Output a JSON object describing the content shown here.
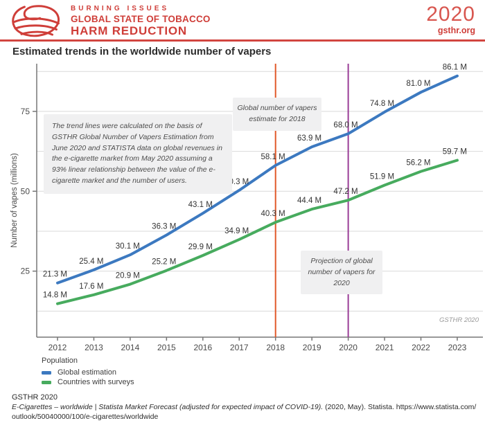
{
  "header": {
    "brand_line1": "BURNING ISSUES",
    "brand_line2": "GLOBAL STATE OF TOBACCO",
    "brand_line3": "HARM REDUCTION",
    "edition_year": "2020",
    "website": "gsthr.org"
  },
  "title": "Estimated trends in the worldwide number of vapers",
  "chart_data": {
    "type": "line",
    "title": "Estimated trends in the worldwide number of vapers",
    "xlabel": "",
    "ylabel": "Number of vapes (millions)",
    "x": [
      2012,
      2013,
      2014,
      2015,
      2016,
      2017,
      2018,
      2019,
      2020,
      2021,
      2022,
      2023
    ],
    "yticks": [
      25,
      50,
      75
    ],
    "gridline_values": [
      12.5,
      25,
      37.5,
      50,
      62.5,
      75,
      87.5
    ],
    "ylim": [
      4,
      90
    ],
    "grid": true,
    "unit_suffix": " M",
    "series": [
      {
        "name": "Global estimation",
        "color": "#3c79c0",
        "values": [
          21.3,
          25.4,
          30.1,
          36.3,
          43.1,
          50.3,
          58.1,
          63.9,
          68.0,
          74.8,
          81.0,
          86.1
        ]
      },
      {
        "name": "Countries with surveys",
        "color": "#47ab5e",
        "values": [
          14.8,
          17.6,
          20.9,
          25.2,
          29.9,
          34.9,
          40.3,
          44.4,
          47.2,
          51.9,
          56.2,
          59.7
        ]
      }
    ],
    "vlines": [
      {
        "x": 2018,
        "color": "#e15829",
        "label": "Global number of vapers estimate for 2018"
      },
      {
        "x": 2020,
        "color": "#993c96",
        "label": "Projection of global number of vapers for 2020"
      }
    ],
    "note": "The trend lines were calculated on the basis of GSTHR Global Number of Vapers Estimation from June 2020 and STATISTA data on global revenues in the e-cigarette market from May 2020 assuming a 93% linear relationship between the value of the e-cigarette market and the number of users.",
    "watermark": "GSTHR 2020",
    "legend": {
      "title": "Population",
      "position": "bottom-left"
    }
  },
  "footer": {
    "org_line": "GSTHR 2020",
    "citation_italic": "E-Cigarettes – worldwide | Statista Market Forecast (adjusted for expected impact of COVID-19).",
    "citation_regular": " (2020, May). Statista. https://www.statista.com/",
    "citation_line2": "outlook/50040000/100/e-cigarettes/worldwide"
  },
  "colors": {
    "brand_red": "#cf3e39",
    "blue": "#3c79c0",
    "green": "#47ab5e",
    "orange_vline": "#e15829",
    "purple_vline": "#993c96"
  }
}
